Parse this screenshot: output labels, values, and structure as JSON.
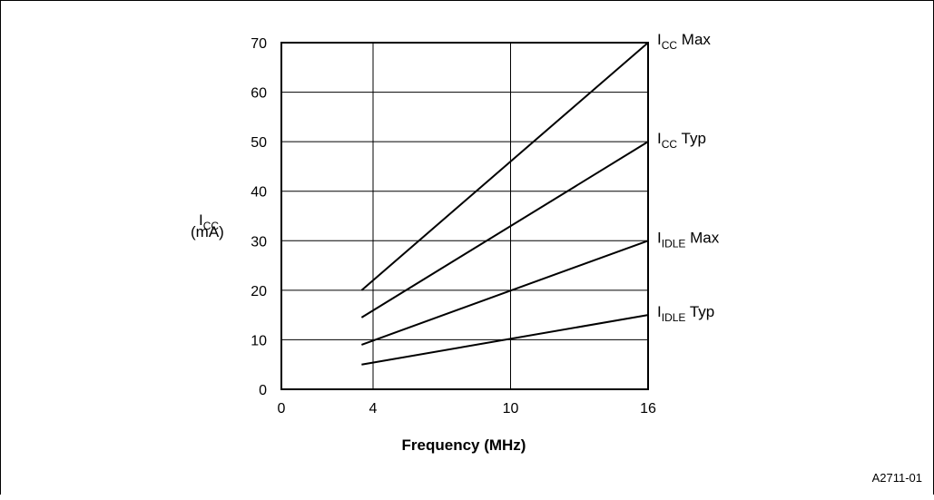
{
  "chart_data": {
    "type": "line",
    "xlabel": "Frequency (MHz)",
    "ylabel": {
      "main": "I",
      "sub": "CC",
      "unit": "(mA)"
    },
    "xlim": [
      0,
      16
    ],
    "ylim": [
      0,
      70
    ],
    "x_ticks": [
      {
        "value": 0,
        "label": "0"
      },
      {
        "value": 4,
        "label": "4"
      },
      {
        "value": 10,
        "label": "10"
      },
      {
        "value": 16,
        "label": "16"
      }
    ],
    "y_ticks": [
      {
        "value": 0,
        "label": "0"
      },
      {
        "value": 10,
        "label": "10"
      },
      {
        "value": 20,
        "label": "20"
      },
      {
        "value": 30,
        "label": "30"
      },
      {
        "value": 40,
        "label": "40"
      },
      {
        "value": 50,
        "label": "50"
      },
      {
        "value": 60,
        "label": "60"
      },
      {
        "value": 70,
        "label": "70"
      }
    ],
    "grid": true,
    "series": [
      {
        "main": "I",
        "sub": "CC",
        "suffix": "Max",
        "points": [
          [
            3.5,
            20
          ],
          [
            16,
            70
          ]
        ]
      },
      {
        "main": "I",
        "sub": "CC",
        "suffix": "Typ",
        "points": [
          [
            3.5,
            14.5
          ],
          [
            16,
            50
          ]
        ]
      },
      {
        "main": "I",
        "sub": "IDLE",
        "suffix": "Max",
        "points": [
          [
            3.5,
            9
          ],
          [
            16,
            30
          ]
        ]
      },
      {
        "main": "I",
        "sub": "IDLE",
        "suffix": "Typ",
        "points": [
          [
            3.5,
            5
          ],
          [
            16,
            15
          ]
        ]
      }
    ]
  },
  "figure_id": "A2711-01"
}
